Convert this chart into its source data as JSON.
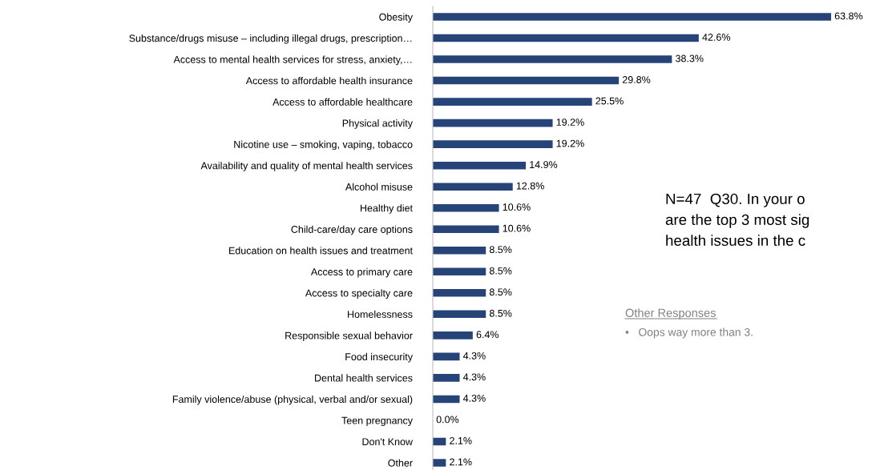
{
  "chart_data": {
    "type": "bar",
    "orientation": "horizontal",
    "color": "#264478",
    "categories": [
      "Obesity",
      "Substance/drugs misuse – including illegal drugs, prescription…",
      "Access to mental health services for stress, anxiety,…",
      "Access to affordable health insurance",
      "Access to affordable healthcare",
      "Physical activity",
      "Nicotine use – smoking, vaping, tobacco",
      "Availability and quality of mental health services",
      "Alcohol misuse",
      "Healthy diet",
      "Child-care/day care options",
      "Education on health issues and treatment",
      "Access to primary care",
      "Access to specialty care",
      "Homelessness",
      "Responsible sexual behavior",
      "Food insecurity",
      "Dental health services",
      "Family violence/abuse (physical, verbal and/or sexual)",
      "Teen pregnancy",
      "Don't Know",
      "Other"
    ],
    "values": [
      63.8,
      42.6,
      38.3,
      29.8,
      25.5,
      19.2,
      19.2,
      14.9,
      12.8,
      10.6,
      10.6,
      8.5,
      8.5,
      8.5,
      8.5,
      6.4,
      4.3,
      4.3,
      4.3,
      0.0,
      2.1,
      2.1
    ],
    "value_labels": [
      "63.8%",
      "42.6%",
      "38.3%",
      "29.8%",
      "25.5%",
      "19.2%",
      "19.2%",
      "14.9%",
      "12.8%",
      "10.6%",
      "10.6%",
      "8.5%",
      "8.5%",
      "8.5%",
      "8.5%",
      "6.4%",
      "4.3%",
      "4.3%",
      "4.3%",
      "0.0%",
      "2.1%",
      "2.1%"
    ],
    "annotations": [
      "N=47  Q30. In your o",
      "are the top 3 most sig",
      "health issues in the c",
      "Other Responses",
      "•   Oops way more than 3."
    ],
    "grid": false,
    "legend": false
  }
}
